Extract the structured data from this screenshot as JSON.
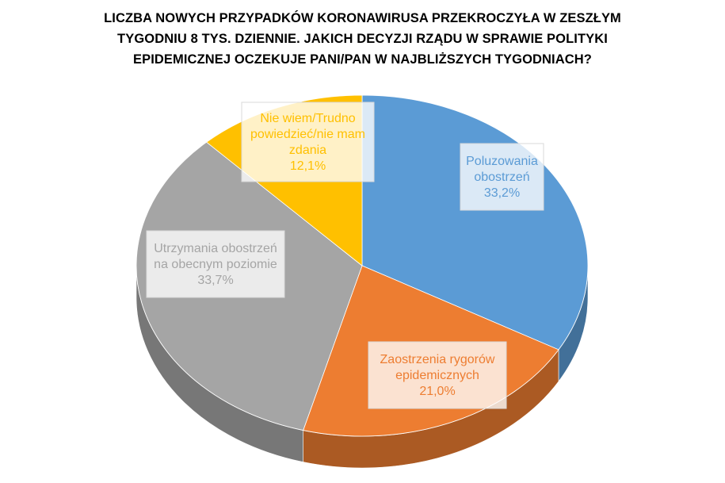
{
  "title_lines": [
    "LICZBA NOWYCH PRZYPADKÓW KORONAWIRUSA PRZEKROCZYŁA W ZESZŁYM",
    "TYGODNIU 8 TYS. DZIENNIE. JAKICH DECYZJI RZĄDU W SPRAWIE POLITYKI",
    "EPIDEMICZNEJ OCZEKUJE PANI/PAN W NAJBLIŻSZYCH TYGODNIACH?"
  ],
  "chart_data": {
    "type": "pie",
    "title": "LICZBA NOWYCH PRZYPADKÓW KORONAWIRUSA PRZEKROCZYŁA W ZESZŁYM TYGODNIU 8 TYS. DZIENNIE. JAKICH DECYZJI RZĄDU W SPRAWIE POLITYKI EPIDEMICZNEJ OCZEKUJE PANI/PAN W NAJBLIŻSZYCH TYGODNIACH?",
    "style": "3d",
    "slices": [
      {
        "label_lines": [
          "Poluzowania",
          "obostrzeń"
        ],
        "value": 33.2,
        "value_label": "33,2%",
        "color": "#5B9BD5"
      },
      {
        "label_lines": [
          "Zaostrzenia rygorów",
          "epidemicznych"
        ],
        "value": 21.0,
        "value_label": "21,0%",
        "color": "#ED7D31"
      },
      {
        "label_lines": [
          "Utrzymania obostrzeń",
          "na obecnym poziomie"
        ],
        "value": 33.7,
        "value_label": "33,7%",
        "color": "#A5A5A5"
      },
      {
        "label_lines": [
          "Nie wiem/Trudno",
          "powiedzieć/nie mam",
          "zdania"
        ],
        "value": 12.1,
        "value_label": "12,1%",
        "color": "#FFC000"
      }
    ]
  }
}
